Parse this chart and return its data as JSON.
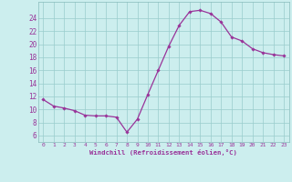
{
  "x_values": [
    0,
    1,
    2,
    3,
    4,
    5,
    6,
    7,
    8,
    9,
    10,
    11,
    12,
    13,
    14,
    15,
    16,
    17,
    18,
    19,
    20,
    21,
    22,
    23
  ],
  "y_values": [
    11.5,
    10.5,
    10.2,
    9.8,
    9.1,
    9.0,
    9.0,
    8.8,
    6.5,
    8.5,
    12.3,
    16.0,
    19.7,
    22.9,
    25.0,
    25.2,
    24.7,
    23.4,
    21.1,
    20.5,
    19.3,
    18.7,
    18.4,
    18.2
  ],
  "line_color": "#993399",
  "marker_color": "#993399",
  "bg_color": "#cceeee",
  "grid_color": "#99cccc",
  "xlabel": "Windchill (Refroidissement éolien,°C)",
  "xlabel_color": "#993399",
  "tick_color": "#993399",
  "ylim": [
    5.0,
    26.5
  ],
  "xlim": [
    -0.5,
    23.5
  ],
  "yticks": [
    6,
    8,
    10,
    12,
    14,
    16,
    18,
    20,
    22,
    24
  ],
  "xticks": [
    0,
    1,
    2,
    3,
    4,
    5,
    6,
    7,
    8,
    9,
    10,
    11,
    12,
    13,
    14,
    15,
    16,
    17,
    18,
    19,
    20,
    21,
    22,
    23
  ]
}
